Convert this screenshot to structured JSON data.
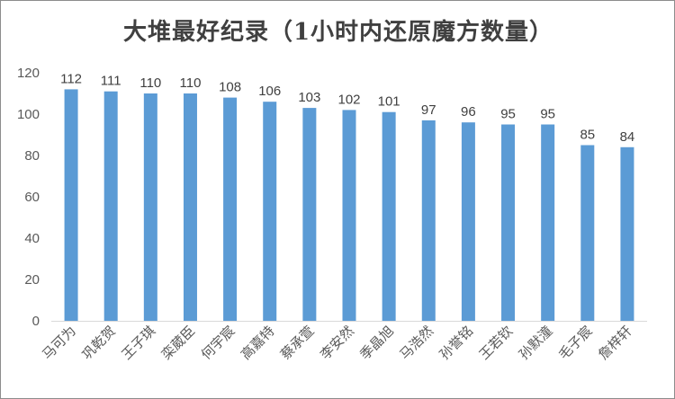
{
  "chart_data": {
    "type": "bar",
    "title": "大堆最好纪录（1小时内还原魔方数量）",
    "xlabel": "",
    "ylabel": "",
    "categories": [
      "马可为",
      "巩乾贺",
      "王子琪",
      "栾葳臣",
      "何宇宸",
      "高嘉特",
      "蔡承萱",
      "李安然",
      "季晶旭",
      "马浩然",
      "孙誉铭",
      "王若钦",
      "孙默潼",
      "毛子宸",
      "詹梓轩"
    ],
    "values": [
      112,
      111,
      110,
      110,
      108,
      106,
      103,
      102,
      101,
      97,
      96,
      95,
      95,
      85,
      84
    ],
    "ylim": [
      0,
      120
    ],
    "yticks": [
      0,
      20,
      40,
      60,
      80,
      100,
      120
    ],
    "grid": false,
    "legend": "none",
    "data_labels": true,
    "colors": {
      "bar": "#5b9bd5",
      "axis": "#d9d9d9"
    }
  }
}
